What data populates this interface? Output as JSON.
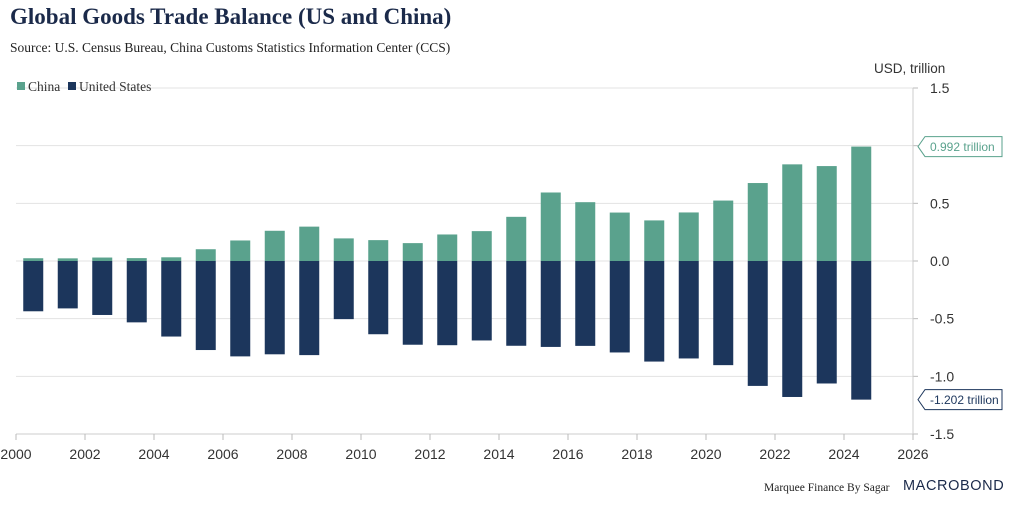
{
  "header": {
    "title": "Global Goods Trade Balance (US and China)",
    "source": "Source: U.S. Census Bureau, China Customs Statistics Information Center (CCS)"
  },
  "footer": {
    "credit": "Marquee Finance By Sagar",
    "brand": "MACROBOND"
  },
  "colors": {
    "china": "#5aa28d",
    "us": "#1c365c",
    "grid": "#e3e3e3",
    "text": "#333333"
  },
  "chart_data": {
    "type": "bar",
    "title": "Global Goods Trade Balance (US and China)",
    "unit_label": "USD, trillion",
    "x": [
      2000,
      2001,
      2002,
      2003,
      2004,
      2005,
      2006,
      2007,
      2008,
      2009,
      2010,
      2011,
      2012,
      2013,
      2014,
      2015,
      2016,
      2017,
      2018,
      2019,
      2020,
      2021,
      2022,
      2023,
      2024
    ],
    "xticks": [
      "2000",
      "2002",
      "2004",
      "2006",
      "2008",
      "2010",
      "2012",
      "2014",
      "2016",
      "2018",
      "2020",
      "2022",
      "2024",
      "2026"
    ],
    "xlim": [
      2000,
      2026
    ],
    "ylim": [
      -1.5,
      1.5
    ],
    "yticks": [
      "1.5",
      "1.0",
      "0.5",
      "0.0",
      "-0.5",
      "-1.0",
      "-1.5"
    ],
    "legend": "top-left",
    "series": [
      {
        "name": "China",
        "values": [
          0.024,
          0.023,
          0.03,
          0.025,
          0.032,
          0.102,
          0.178,
          0.262,
          0.298,
          0.196,
          0.181,
          0.155,
          0.23,
          0.259,
          0.383,
          0.594,
          0.51,
          0.42,
          0.352,
          0.421,
          0.524,
          0.676,
          0.838,
          0.823,
          0.992
        ]
      },
      {
        "name": "United States",
        "values": [
          -0.436,
          -0.411,
          -0.468,
          -0.532,
          -0.655,
          -0.772,
          -0.827,
          -0.809,
          -0.816,
          -0.504,
          -0.635,
          -0.726,
          -0.73,
          -0.689,
          -0.735,
          -0.745,
          -0.736,
          -0.793,
          -0.872,
          -0.845,
          -0.903,
          -1.083,
          -1.179,
          -1.062,
          -1.202
        ]
      }
    ],
    "annotations": [
      {
        "series": "China",
        "label": "0.992 trillion",
        "value": 0.992
      },
      {
        "series": "United States",
        "label": "-1.202 trillion",
        "value": -1.202
      }
    ]
  }
}
